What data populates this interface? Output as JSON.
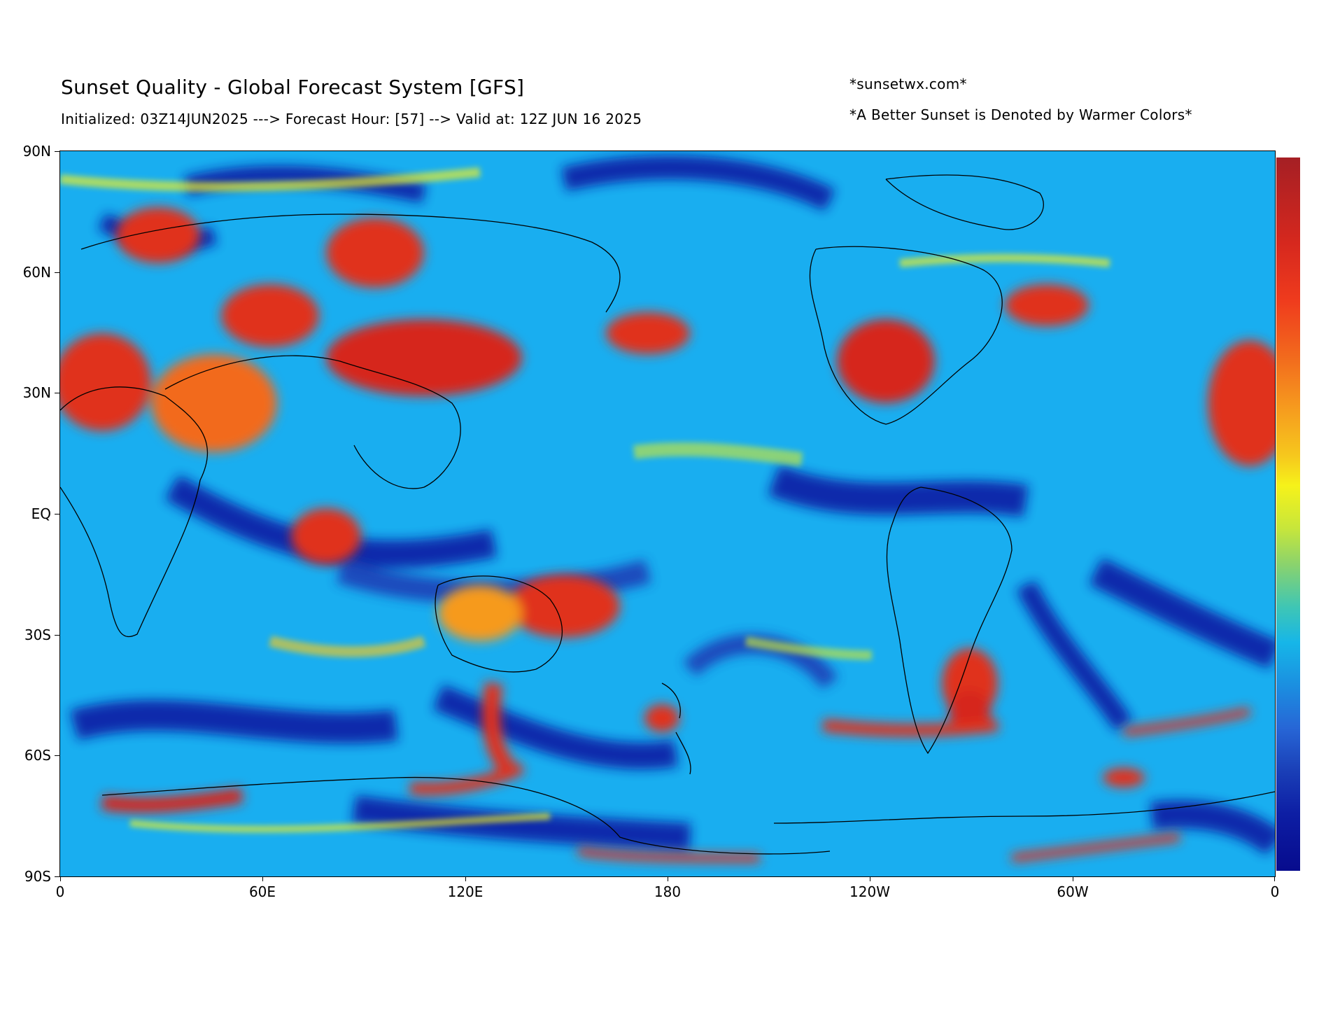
{
  "header": {
    "title": "Sunset Quality - Global Forecast System [GFS]",
    "subtitle": "Initialized: 03Z14JUN2025 ---> Forecast Hour: [57] --> Valid at: 12Z JUN 16 2025",
    "credit": "*sunsetwx.com*",
    "note": "*A Better Sunset is Denoted by Warmer Colors*"
  },
  "axes": {
    "y_ticks": [
      "90N",
      "60N",
      "30N",
      "EQ",
      "30S",
      "60S",
      "90S"
    ],
    "x_ticks": [
      "0",
      "60E",
      "120E",
      "180",
      "120W",
      "60W",
      "0"
    ]
  },
  "colorbar": {
    "orientation": "vertical",
    "low_color": "#070b8d",
    "high_color": "#a51f24",
    "tick_labels": []
  },
  "map": {
    "projection": "equirectangular",
    "lon_range": [
      0,
      360
    ],
    "lat_range": [
      -90,
      90
    ],
    "background_color": "#19aef0",
    "warm_region_color": "#e0301e",
    "cool_region_color": "#0d1ea4"
  }
}
